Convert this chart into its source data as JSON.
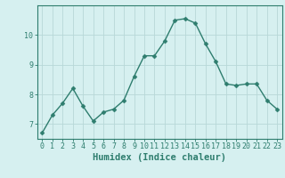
{
  "x": [
    0,
    1,
    2,
    3,
    4,
    5,
    6,
    7,
    8,
    9,
    10,
    11,
    12,
    13,
    14,
    15,
    16,
    17,
    18,
    19,
    20,
    21,
    22,
    23
  ],
  "y": [
    6.7,
    7.3,
    7.7,
    8.2,
    7.6,
    7.1,
    7.4,
    7.5,
    7.8,
    8.6,
    9.3,
    9.3,
    9.8,
    10.5,
    10.55,
    10.4,
    9.7,
    9.1,
    8.35,
    8.3,
    8.35,
    8.35,
    7.8,
    7.5
  ],
  "line_color": "#2e7d6e",
  "marker": "D",
  "marker_size": 2.5,
  "bg_color": "#d6f0f0",
  "grid_color": "#b8d8d8",
  "axis_color": "#2e7d6e",
  "xlabel": "Humidex (Indice chaleur)",
  "ylim": [
    6.5,
    11.0
  ],
  "xlim": [
    -0.5,
    23.5
  ],
  "yticks": [
    7,
    8,
    9,
    10
  ],
  "xticks": [
    0,
    1,
    2,
    3,
    4,
    5,
    6,
    7,
    8,
    9,
    10,
    11,
    12,
    13,
    14,
    15,
    16,
    17,
    18,
    19,
    20,
    21,
    22,
    23
  ],
  "tick_fontsize": 6,
  "label_fontsize": 7.5
}
